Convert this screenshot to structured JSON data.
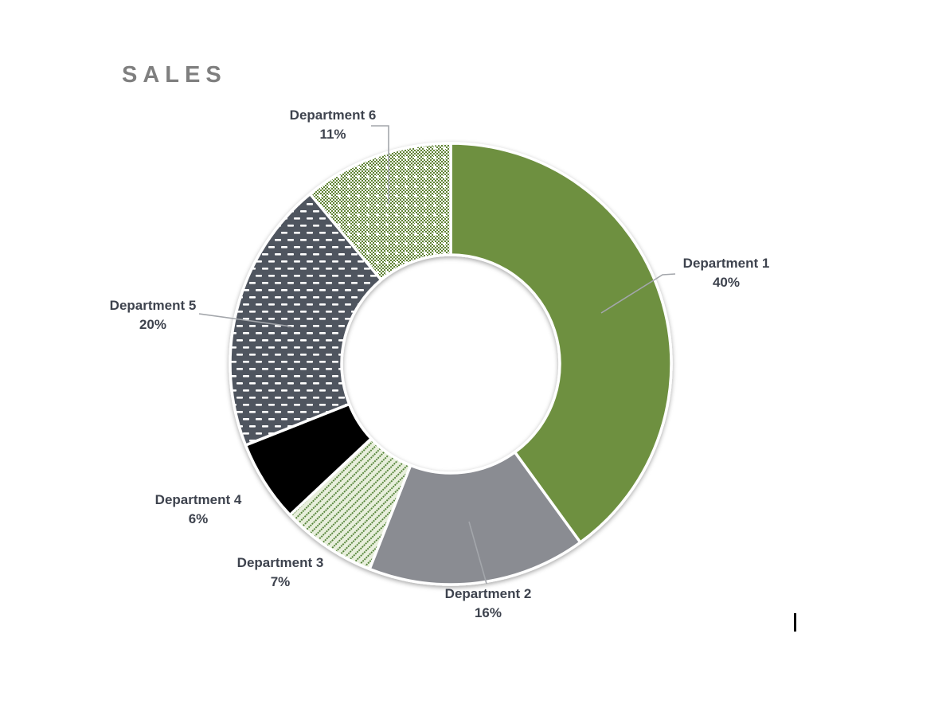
{
  "header": {
    "title": "SALES"
  },
  "chart_data": {
    "type": "pie",
    "subtype": "doughnut",
    "title": "SALES",
    "categories": [
      "Department 1",
      "Department 2",
      "Department 3",
      "Department 4",
      "Department 5",
      "Department 6"
    ],
    "values": [
      40,
      16,
      7,
      6,
      20,
      11
    ],
    "unit": "%",
    "start_angle_deg": 0,
    "direction": "clockwise",
    "hole_ratio": 0.49,
    "legend_position": "none",
    "data_label_style": "category name and percentage outside slices with gray leader lines",
    "slices": [
      {
        "label": "Department 1",
        "value": 40,
        "pct_label": "40%",
        "pattern": "solid",
        "color": "#6E9040"
      },
      {
        "label": "Department 2",
        "value": 16,
        "pct_label": "16%",
        "pattern": "solid",
        "color": "#8A8C92"
      },
      {
        "label": "Department 3",
        "value": 7,
        "pct_label": "7%",
        "pattern": "diagonal-dots",
        "color": "#4F8032",
        "bg_color": "#E8EFDC"
      },
      {
        "label": "Department 4",
        "value": 6,
        "pct_label": "6%",
        "pattern": "solid",
        "color": "#000000"
      },
      {
        "label": "Department 5",
        "value": 20,
        "pct_label": "20%",
        "pattern": "horizontal-dashes",
        "color": "#50545E",
        "fg_color": "#FFFFFF"
      },
      {
        "label": "Department 6",
        "value": 11,
        "pct_label": "11%",
        "pattern": "checkerboard",
        "color": "#5E8233",
        "bg_color": "#FFFFFF"
      }
    ],
    "colors": {
      "title_text": "#7F7F7F",
      "label_text": "#3E434E",
      "leader_line": "#A3A6AB",
      "slice_border": "#FFFFFF",
      "background": "#FFFFFF"
    }
  }
}
